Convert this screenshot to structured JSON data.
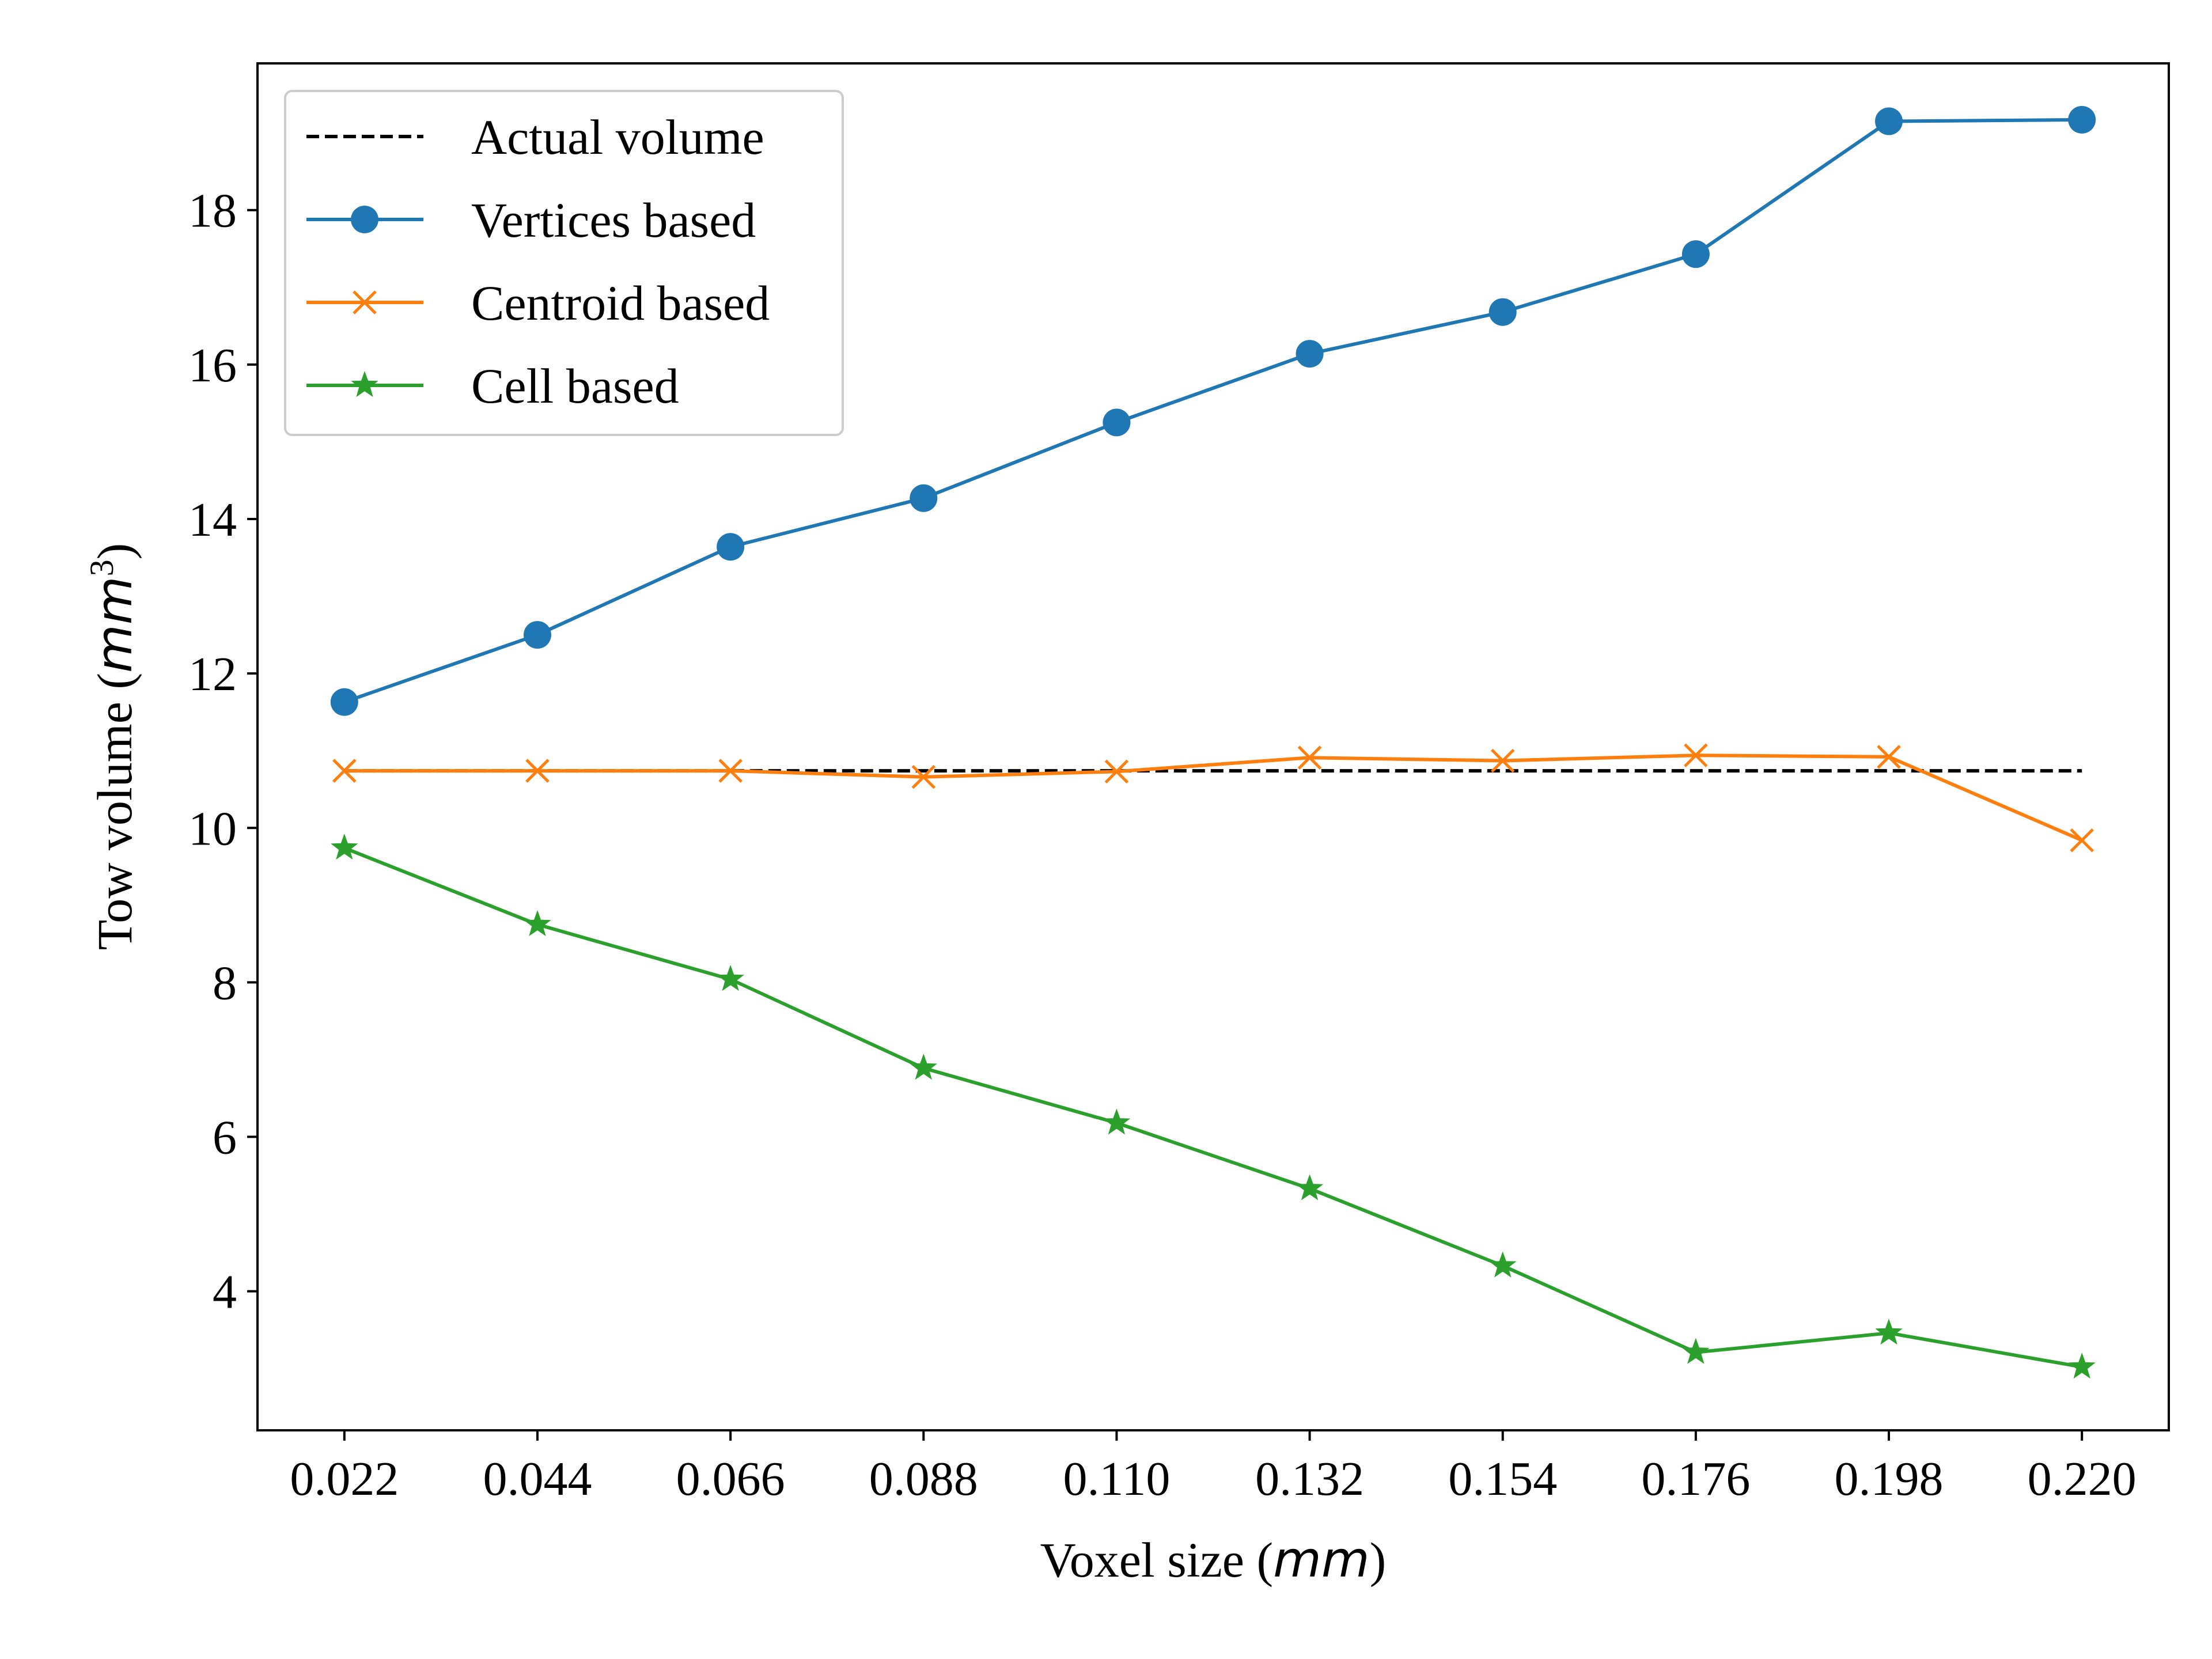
{
  "chart_data": {
    "type": "line",
    "title": "",
    "xlabel": {
      "prefix": "Voxel size (",
      "unit": "mm",
      "suffix": ")"
    },
    "ylabel": {
      "prefix": "Tow volume (",
      "unit": "mm",
      "power": "3",
      "suffix": ")"
    },
    "x": [
      0.022,
      0.044,
      0.066,
      0.088,
      0.11,
      0.132,
      0.154,
      0.176,
      0.198,
      0.22
    ],
    "x_tick_labels": [
      "0.022",
      "0.044",
      "0.066",
      "0.088",
      "0.110",
      "0.132",
      "0.154",
      "0.176",
      "0.198",
      "0.220"
    ],
    "y_ticks": [
      4,
      6,
      8,
      10,
      12,
      14,
      16,
      18
    ],
    "y_tick_labels": [
      "4",
      "6",
      "8",
      "10",
      "12",
      "14",
      "16",
      "18"
    ],
    "xlim": [
      0.0121,
      0.2299
    ],
    "ylim": [
      2.2,
      19.9
    ],
    "grid": false,
    "legend_position": "upper-left",
    "series": [
      {
        "name": "Actual volume",
        "color": "#000000",
        "style": "dashed",
        "marker": "none",
        "values": [
          10.74,
          10.74,
          10.74,
          10.74,
          10.74,
          10.74,
          10.74,
          10.74,
          10.74,
          10.74
        ]
      },
      {
        "name": "Vertices based",
        "color": "#1f77b4",
        "style": "solid",
        "marker": "circle",
        "values": [
          11.63,
          12.5,
          13.64,
          14.27,
          15.25,
          16.14,
          16.68,
          17.43,
          19.15,
          19.17
        ]
      },
      {
        "name": "Centroid based",
        "color": "#ff7f0e",
        "style": "solid",
        "marker": "x",
        "values": [
          10.74,
          10.74,
          10.74,
          10.66,
          10.73,
          10.91,
          10.87,
          10.94,
          10.92,
          9.84
        ]
      },
      {
        "name": "Cell based",
        "color": "#2ca02c",
        "style": "solid",
        "marker": "star",
        "values": [
          9.74,
          8.75,
          8.04,
          6.89,
          6.18,
          5.33,
          4.33,
          3.21,
          3.46,
          3.02
        ]
      }
    ]
  }
}
